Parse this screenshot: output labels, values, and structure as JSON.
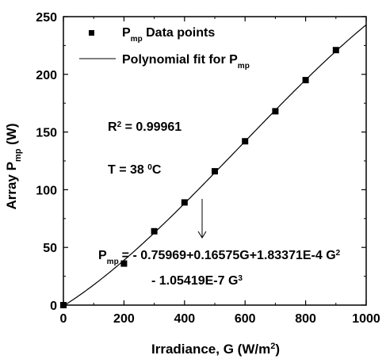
{
  "chart_data": {
    "type": "scatter",
    "xlabel": {
      "prefix": "Irradiance, G (W/m",
      "sup": "2",
      "suffix": ")"
    },
    "ylabel": {
      "prefix": "Array P",
      "sub": "mp",
      "suffix": " (W)"
    },
    "xlim": [
      0,
      1000
    ],
    "ylim": [
      0,
      250
    ],
    "x_ticks": [
      "0",
      "200",
      "400",
      "600",
      "800",
      "1000"
    ],
    "y_ticks": [
      "0",
      "50",
      "100",
      "150",
      "200",
      "250"
    ],
    "grid": false,
    "legend_position": "top-left",
    "series": [
      {
        "name": {
          "main": "P",
          "sub": "mp",
          "suffix": " Data points"
        },
        "mode": "markers",
        "marker": "square",
        "x": [
          0,
          200,
          300,
          400,
          500,
          600,
          700,
          800,
          900
        ],
        "y": [
          0,
          36,
          64,
          89,
          116,
          142,
          168,
          195,
          221
        ]
      },
      {
        "name": {
          "prefix": "Polynomial fit for P",
          "sub": "mp"
        },
        "mode": "line",
        "function": "polynomial",
        "coefficients": [
          -0.75969,
          0.16575,
          0.000183371,
          -1.05419e-07
        ],
        "x_range": [
          0,
          1000
        ]
      }
    ],
    "annotations": {
      "r2": {
        "prefix": "R",
        "sup": "2",
        "suffix": " = 0.99961"
      },
      "temperature": {
        "prefix": "T = 38 ",
        "sup": "0",
        "suffix": "C"
      },
      "equation_line1": {
        "lead": "P",
        "sub": "mp",
        "middle": "= - 0.75969+0.16575G+1.83371E-4 G",
        "sup": "2"
      },
      "equation_line2": {
        "text": "- 1.05419E-7 G",
        "sup": "3"
      }
    }
  }
}
